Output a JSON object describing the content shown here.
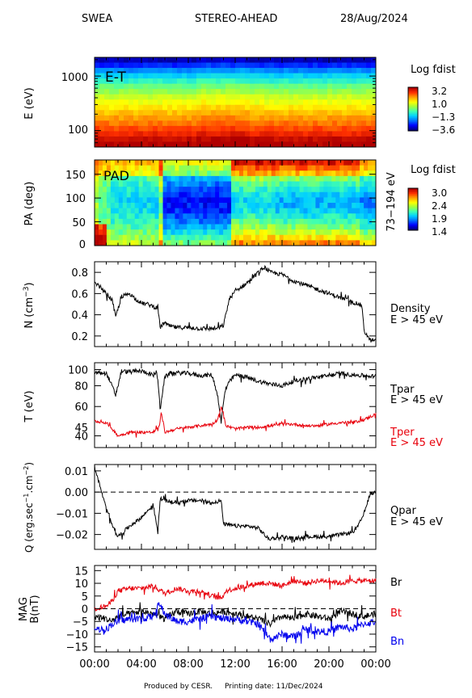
{
  "header": {
    "instrument": "SWEA",
    "spacecraft": "STEREO-AHEAD",
    "date": "28/Aug/2024"
  },
  "footer": {
    "produced_by": "Produced by CESR.",
    "printing_date": "Printing date: 11/Dec/2024"
  },
  "colors": {
    "black": "#000000",
    "red": "#e8000b",
    "blue": "#0000ee",
    "colormap": [
      "#000080",
      "#0000ff",
      "#0070ff",
      "#00d0ff",
      "#40ffb0",
      "#a0ff40",
      "#ffff00",
      "#ffa000",
      "#ff3000",
      "#b00000"
    ]
  },
  "chart_data": [
    {
      "type": "heatmap",
      "id": "energy_spectrogram",
      "label": "E-T",
      "ylabel": "E (eV)",
      "yscale": "log",
      "yticks": [
        100,
        1000
      ],
      "ytick_labels": [
        "100",
        "1000"
      ],
      "colorbar": {
        "title": "Log fdist",
        "ticks": [
          "3.2",
          "1.0",
          "−1.3",
          "−3.6"
        ],
        "range": [
          -3.6,
          3.2
        ]
      },
      "energy_band_values": [
        3.2,
        3.0,
        2.6,
        2.3,
        2.0,
        1.7,
        1.4,
        1.1,
        0.8,
        0.5,
        0.1,
        -0.3,
        -0.8,
        -1.3,
        -1.9,
        -2.6,
        -3.3
      ]
    },
    {
      "type": "heatmap",
      "id": "pitch_angle",
      "label": "PAD",
      "ylabel": "PA (deg)",
      "ylim": [
        0,
        180
      ],
      "yticks": [
        0,
        50,
        100,
        150
      ],
      "right_label": "73−194 eV",
      "colorbar": {
        "title": "Log fdist",
        "ticks": [
          "3.0",
          "2.4",
          "1.9",
          "1.4"
        ],
        "range": [
          1.4,
          3.0
        ]
      }
    },
    {
      "type": "line",
      "id": "density",
      "ylabel": "N (cm⁻³)",
      "ylim": [
        0.1,
        0.9
      ],
      "yticks": [
        0.2,
        0.4,
        0.6,
        0.8
      ],
      "series": [
        {
          "name": "Density",
          "label_lines": [
            "Density",
            "E > 45 eV"
          ],
          "color": "#000000",
          "x": [
            0,
            0.5,
            1,
            1.5,
            1.8,
            2.2,
            2.5,
            3,
            3.5,
            4,
            4.5,
            5,
            5.4,
            5.6,
            6,
            6.2,
            7,
            8,
            9,
            10,
            10.5,
            11,
            11.5,
            12,
            13,
            14,
            14.5,
            15,
            16,
            17,
            18,
            19,
            20,
            21,
            22,
            22.8,
            23,
            23.5,
            24
          ],
          "y": [
            0.7,
            0.66,
            0.6,
            0.54,
            0.38,
            0.53,
            0.58,
            0.6,
            0.55,
            0.51,
            0.5,
            0.48,
            0.46,
            0.28,
            0.33,
            0.3,
            0.28,
            0.28,
            0.27,
            0.27,
            0.27,
            0.3,
            0.55,
            0.62,
            0.7,
            0.8,
            0.85,
            0.8,
            0.78,
            0.72,
            0.68,
            0.64,
            0.6,
            0.56,
            0.52,
            0.49,
            0.25,
            0.16,
            0.15
          ]
        }
      ]
    },
    {
      "type": "line",
      "id": "temperature",
      "ylabel": "T (eV)",
      "yscale": "log",
      "ylim": [
        34,
        110
      ],
      "yticks": [
        40,
        60,
        80,
        100
      ],
      "ytick_labels": [
        "40",
        "60",
        "80",
        "100"
      ],
      "tick_45_label": "45",
      "series": [
        {
          "name": "Tpar",
          "label_lines": [
            "Tpar",
            "E > 45 eV"
          ],
          "color": "#000000",
          "x": [
            0,
            1,
            1.8,
            2,
            2.3,
            3,
            4,
            4.5,
            5,
            5.3,
            5.6,
            6,
            6.5,
            8,
            9,
            10,
            10.5,
            10.8,
            11.2,
            12,
            13,
            14,
            15,
            16,
            17,
            18,
            19,
            20,
            21,
            22,
            23,
            24
          ],
          "y": [
            96,
            95,
            70,
            80,
            98,
            97,
            98,
            96,
            92,
            98,
            57,
            90,
            96,
            95,
            92,
            93,
            70,
            48,
            78,
            93,
            90,
            85,
            82,
            80,
            85,
            88,
            90,
            92,
            95,
            93,
            92,
            91
          ]
        },
        {
          "name": "Tper",
          "label_lines": [
            "Tper",
            "E > 45 eV"
          ],
          "color": "#e8000b",
          "x": [
            0,
            1,
            2,
            3,
            4,
            5,
            5.5,
            5.7,
            6,
            7,
            8,
            9,
            10,
            10.5,
            10.8,
            11.2,
            12,
            13,
            14,
            15,
            16,
            17,
            18,
            19,
            20,
            21,
            22,
            23,
            24
          ],
          "y": [
            49,
            48,
            40,
            42,
            42,
            42,
            45,
            55,
            42,
            44,
            45,
            46,
            47,
            50,
            60,
            46,
            44,
            45,
            45,
            46,
            47,
            47,
            46,
            46,
            47,
            48,
            48,
            50,
            54
          ]
        }
      ]
    },
    {
      "type": "line",
      "id": "heat_flux",
      "ylabel": "Q (erg.sec⁻¹.cm⁻²)",
      "ylim": [
        -0.027,
        0.013
      ],
      "yticks": [
        -0.02,
        -0.01,
        0.0,
        0.01
      ],
      "ytick_labels": [
        "−0.02",
        "−0.01",
        "0.00",
        "0.01"
      ],
      "reference_line": 0.0,
      "series": [
        {
          "name": "Qpar",
          "label_lines": [
            "Qpar",
            "E > 45 eV"
          ],
          "color": "#000000",
          "x": [
            0,
            0.3,
            0.6,
            1,
            1.5,
            2,
            3,
            4,
            5,
            5.4,
            5.6,
            6,
            7,
            8,
            9,
            10,
            10.8,
            11,
            12,
            13,
            14,
            14.8,
            15.2,
            16,
            17,
            18,
            19,
            20,
            21,
            22,
            22.5,
            23,
            23.5,
            24
          ],
          "y": [
            0.012,
            0.006,
            0.0,
            -0.008,
            -0.015,
            -0.021,
            -0.016,
            -0.012,
            -0.006,
            -0.019,
            -0.003,
            -0.004,
            -0.005,
            -0.004,
            -0.004,
            -0.005,
            -0.004,
            -0.015,
            -0.016,
            -0.016,
            -0.017,
            -0.022,
            -0.022,
            -0.021,
            -0.022,
            -0.021,
            -0.021,
            -0.021,
            -0.02,
            -0.019,
            -0.016,
            -0.01,
            -0.001,
            0.0
          ]
        }
      ]
    },
    {
      "type": "line",
      "id": "magnetic_field",
      "ylabel": "MAG B(nT)",
      "ylim": [
        -17,
        17
      ],
      "yticks": [
        -15,
        -10,
        -5,
        0,
        5,
        10,
        15
      ],
      "ytick_labels": [
        "−15",
        "−10",
        "−5",
        "0",
        "5",
        "10",
        "15"
      ],
      "reference_line": 0,
      "xlabel": "",
      "xticks": [
        0,
        4,
        8,
        12,
        16,
        20,
        24
      ],
      "xtick_labels": [
        "00:00",
        "04:00",
        "08:00",
        "12:00",
        "16:00",
        "20:00",
        "00:00"
      ],
      "series": [
        {
          "name": "Br",
          "color": "#e8000b",
          "x": [
            0,
            1,
            1.5,
            2,
            3,
            4,
            5,
            6,
            7,
            8,
            9,
            10,
            10.8,
            11.2,
            12,
            13,
            14,
            15,
            16,
            17,
            18,
            19,
            20,
            21,
            22,
            23,
            24
          ],
          "y": [
            0,
            1,
            3,
            7,
            8,
            8,
            9,
            6,
            8,
            7,
            7,
            5,
            4,
            7,
            8,
            9,
            10,
            10,
            9,
            11,
            10,
            11,
            11,
            10,
            11,
            11,
            11
          ]
        },
        {
          "name": "Bt",
          "color": "#000000",
          "x": [
            0,
            1,
            1.5,
            2,
            3,
            4,
            5,
            6,
            7,
            8,
            9,
            10,
            11,
            12,
            13,
            14,
            15,
            16,
            17,
            18,
            19,
            20,
            21,
            22,
            23,
            24
          ],
          "y": [
            -3,
            -4,
            -5,
            -3,
            -2,
            -1,
            -2,
            -4,
            -1,
            -2,
            -1,
            -2,
            -1,
            -2,
            -3,
            -4,
            -6,
            -3,
            -4,
            -2,
            -3,
            -4,
            -1,
            -2,
            -3,
            -2
          ]
        },
        {
          "name": "Bn",
          "color": "#0000ee",
          "x": [
            0,
            1,
            1.5,
            2,
            3,
            4,
            5,
            5.5,
            6,
            7,
            8,
            9,
            10,
            11,
            12,
            13,
            14,
            15,
            16,
            17,
            18,
            19,
            20,
            21,
            22,
            23,
            24
          ],
          "y": [
            -8,
            -8,
            -6,
            -5,
            -4,
            -4,
            -3,
            2,
            -2,
            -5,
            -5,
            -4,
            -3,
            -4,
            -4,
            -5,
            -6,
            -12,
            -10,
            -11,
            -8,
            -9,
            -9,
            -7,
            -8,
            -6,
            -5
          ]
        }
      ]
    }
  ]
}
